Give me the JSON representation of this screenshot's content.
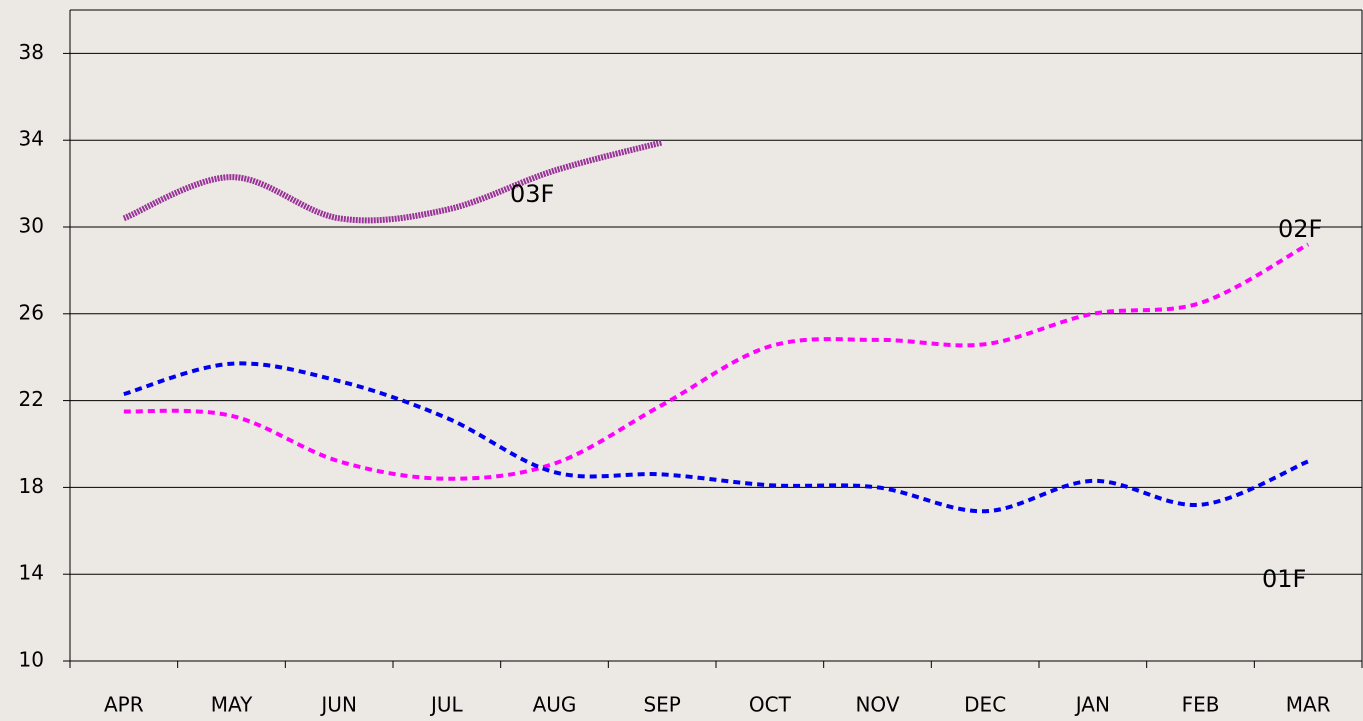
{
  "chart_data": {
    "type": "line",
    "categories": [
      "APR",
      "MAY",
      "JUN",
      "JUL",
      "AUG",
      "SEP",
      "OCT",
      "NOV",
      "DEC",
      "JAN",
      "FEB",
      "MAR"
    ],
    "series": [
      {
        "name": "03F",
        "color": "#993399",
        "dashed": false,
        "values": [
          30.4,
          32.3,
          30.4,
          30.8,
          32.6,
          33.9,
          null,
          null,
          null,
          null,
          null,
          null
        ]
      },
      {
        "name": "02F",
        "color": "#ff00ff",
        "dashed": true,
        "values": [
          21.5,
          21.3,
          19.2,
          18.4,
          19.1,
          21.8,
          24.5,
          24.8,
          24.6,
          26.0,
          26.5,
          29.2
        ]
      },
      {
        "name": "01F",
        "color": "#0000ee",
        "dashed": true,
        "values": [
          22.3,
          23.7,
          22.9,
          21.2,
          18.7,
          18.6,
          18.1,
          18.0,
          16.9,
          18.3,
          17.2,
          19.2
        ]
      }
    ],
    "ylim": [
      10,
      40
    ],
    "yticks": [
      10,
      14,
      18,
      22,
      26,
      30,
      34,
      38
    ],
    "grid": true
  }
}
